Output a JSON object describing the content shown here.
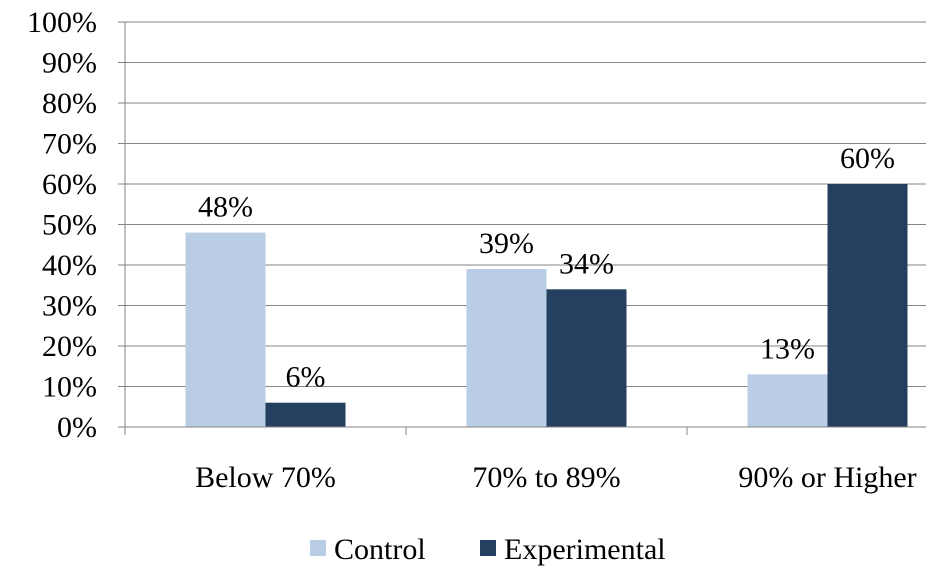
{
  "chart_data": {
    "type": "bar",
    "title": "",
    "xlabel": "",
    "ylabel": "",
    "categories": [
      "Below 70%",
      "70% to 89%",
      "90% or Higher"
    ],
    "series": [
      {
        "name": "Control",
        "color": "#b9cde5",
        "values": [
          48,
          39,
          13
        ],
        "labels": [
          "48%",
          "39%",
          "13%"
        ]
      },
      {
        "name": "Experimental",
        "color": "#243f60",
        "values": [
          6,
          34,
          60
        ],
        "labels": [
          "6%",
          "34%",
          "60%"
        ]
      }
    ],
    "ylim": [
      0,
      100
    ],
    "yticks": [
      0,
      10,
      20,
      30,
      40,
      50,
      60,
      70,
      80,
      90,
      100
    ],
    "ytick_labels": [
      "0%",
      "10%",
      "20%",
      "30%",
      "40%",
      "50%",
      "60%",
      "70%",
      "80%",
      "90%",
      "100%"
    ],
    "grid": true,
    "legend_position": "bottom"
  }
}
